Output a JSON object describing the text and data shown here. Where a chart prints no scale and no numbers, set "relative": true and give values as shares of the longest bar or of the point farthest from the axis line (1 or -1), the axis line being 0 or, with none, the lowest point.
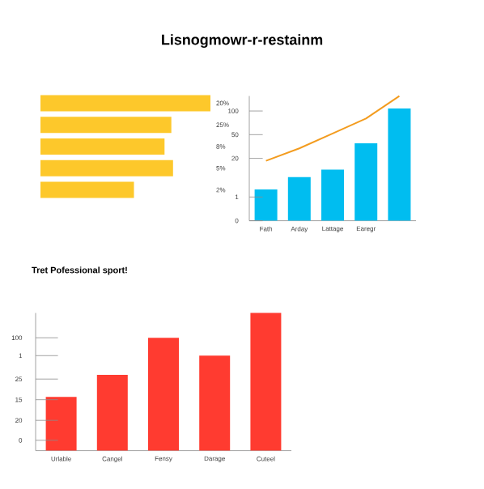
{
  "chart_data": [
    {
      "type": "bar",
      "orientation": "horizontal",
      "relative": true,
      "title": "Lisnogmowr-r-restainm",
      "categories": [
        "20%",
        "25%",
        "8%",
        "5%",
        "2%"
      ],
      "values": [
        1,
        0.77,
        0.73,
        0.78,
        0.55
      ],
      "color": "#fdc82b",
      "tick_labels": "y"
    },
    {
      "type": "bar",
      "relative": true,
      "categories": [
        "Fath",
        "Arday",
        "Lattage",
        "Earegr",
        null
      ],
      "annotations": [
        "0",
        "1",
        "20",
        "50",
        "100"
      ],
      "series": [
        {
          "color": "#00bdf0",
          "values": [
            0.25,
            0.35,
            0.41,
            0.62,
            0.9
          ]
        },
        {
          "type": "line",
          "color": "#f39c1f",
          "values": [
            0.48,
            0.58,
            0.7,
            0.82,
            1
          ]
        }
      ]
    },
    {
      "type": "bar",
      "relative": true,
      "title": "Tret Pofessional sport!",
      "categories": [
        "Urlable",
        "Cangel",
        "Fensy",
        "Darage",
        "Cuteel"
      ],
      "values": [
        0.39,
        0.55,
        0.82,
        0.69,
        1
      ],
      "color": "#ff3b30",
      "annotations": [
        "0",
        "20",
        "15",
        "25",
        "1",
        "100"
      ]
    }
  ]
}
